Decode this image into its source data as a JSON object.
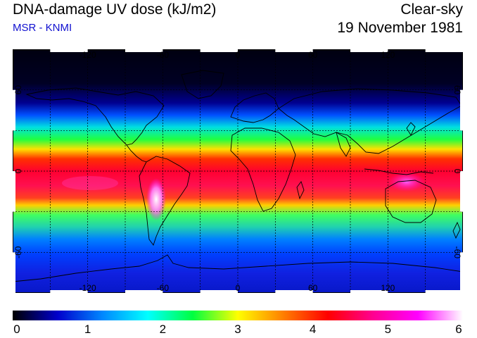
{
  "header": {
    "title": "DNA-damage UV dose (kJ/m2)",
    "source": "MSR - KNMI",
    "condition": "Clear-sky",
    "date": "19 November 1981"
  },
  "map": {
    "projection": "equirectangular",
    "lon_range": [
      -180,
      180
    ],
    "lat_range": [
      -90,
      90
    ],
    "lon_gridlines": [
      -150,
      -120,
      -90,
      -60,
      -30,
      0,
      30,
      60,
      90,
      120,
      150
    ],
    "lat_gridlines": [
      -60,
      -30,
      0,
      30,
      60
    ],
    "lon_tick_labels": [
      "-120",
      "-60",
      "0",
      "60",
      "120"
    ],
    "lat_tick_labels": [
      "60",
      "0",
      "-60"
    ],
    "coastline_color": "#000000",
    "grid_line_style": "dashed"
  },
  "colorbar": {
    "min": 0,
    "max": 6,
    "tick_labels": [
      "0",
      "1",
      "2",
      "3",
      "4",
      "5",
      "6"
    ],
    "colors": [
      "#000000",
      "#0000cc",
      "#0088ff",
      "#00ffff",
      "#00ff40",
      "#ffff00",
      "#ff8000",
      "#ff0000",
      "#ff0090",
      "#ff00ff",
      "#ffffff"
    ]
  }
}
